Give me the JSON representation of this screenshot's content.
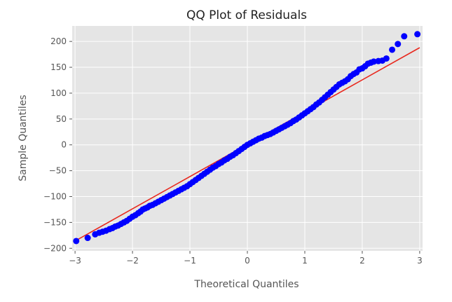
{
  "chart_data": {
    "type": "scatter",
    "title": "QQ Plot of Residuals",
    "xlabel": "Theoretical Quantiles",
    "ylabel": "Sample Quantiles",
    "xlim": [
      -3.05,
      3.05
    ],
    "ylim": [
      -205,
      230
    ],
    "xticks": [
      -3,
      -2,
      -1,
      0,
      1,
      2,
      3
    ],
    "xtick_labels": [
      "−3",
      "−2",
      "−1",
      "0",
      "1",
      "2",
      "3"
    ],
    "yticks": [
      -200,
      -150,
      -100,
      -50,
      0,
      50,
      100,
      150,
      200
    ],
    "ytick_labels": [
      "−200",
      "−150",
      "−100",
      "−50",
      "0",
      "50",
      "100",
      "150",
      "200"
    ],
    "grid": true,
    "background": "#e5e5e5",
    "grid_color": "#ffffff",
    "reference_line": {
      "x": [
        -3.0,
        3.0
      ],
      "y": [
        -186,
        188
      ],
      "color": "#e8291f"
    },
    "series": [
      {
        "color": "#0000ff",
        "points": [
          [
            -2.98,
            -186
          ],
          [
            -2.78,
            -180
          ],
          [
            -2.65,
            -173
          ],
          [
            -2.58,
            -170
          ],
          [
            -2.52,
            -168
          ],
          [
            -2.46,
            -166
          ],
          [
            -2.4,
            -163
          ],
          [
            -2.35,
            -161
          ],
          [
            -2.3,
            -158
          ],
          [
            -2.25,
            -156
          ],
          [
            -2.2,
            -153
          ],
          [
            -2.15,
            -150
          ],
          [
            -2.1,
            -147
          ],
          [
            -2.05,
            -143
          ],
          [
            -2.0,
            -139
          ],
          [
            -1.95,
            -136
          ],
          [
            -1.9,
            -132
          ],
          [
            -1.86,
            -129
          ],
          [
            -1.82,
            -125
          ],
          [
            -1.78,
            -123
          ],
          [
            -1.74,
            -121
          ],
          [
            -1.7,
            -118
          ],
          [
            -1.65,
            -116
          ],
          [
            -1.6,
            -113
          ],
          [
            -1.55,
            -110
          ],
          [
            -1.5,
            -107
          ],
          [
            -1.45,
            -104
          ],
          [
            -1.4,
            -101
          ],
          [
            -1.35,
            -98
          ],
          [
            -1.3,
            -95
          ],
          [
            -1.25,
            -92
          ],
          [
            -1.2,
            -89
          ],
          [
            -1.15,
            -86
          ],
          [
            -1.1,
            -83
          ],
          [
            -1.05,
            -80
          ],
          [
            -1.0,
            -76
          ],
          [
            -0.95,
            -72
          ],
          [
            -0.9,
            -68
          ],
          [
            -0.85,
            -64
          ],
          [
            -0.8,
            -60
          ],
          [
            -0.75,
            -56
          ],
          [
            -0.7,
            -52
          ],
          [
            -0.65,
            -48
          ],
          [
            -0.6,
            -44
          ],
          [
            -0.55,
            -41
          ],
          [
            -0.5,
            -37
          ],
          [
            -0.45,
            -34
          ],
          [
            -0.4,
            -30
          ],
          [
            -0.35,
            -27
          ],
          [
            -0.3,
            -23
          ],
          [
            -0.25,
            -20
          ],
          [
            -0.2,
            -16
          ],
          [
            -0.15,
            -12
          ],
          [
            -0.1,
            -8
          ],
          [
            -0.05,
            -4
          ],
          [
            0.0,
            0
          ],
          [
            0.05,
            3
          ],
          [
            0.1,
            6
          ],
          [
            0.15,
            9
          ],
          [
            0.2,
            12
          ],
          [
            0.25,
            14
          ],
          [
            0.3,
            17
          ],
          [
            0.35,
            19
          ],
          [
            0.4,
            21
          ],
          [
            0.45,
            24
          ],
          [
            0.5,
            27
          ],
          [
            0.55,
            30
          ],
          [
            0.6,
            33
          ],
          [
            0.65,
            36
          ],
          [
            0.7,
            39
          ],
          [
            0.75,
            42
          ],
          [
            0.8,
            46
          ],
          [
            0.85,
            49
          ],
          [
            0.9,
            53
          ],
          [
            0.95,
            57
          ],
          [
            1.0,
            61
          ],
          [
            1.05,
            65
          ],
          [
            1.1,
            69
          ],
          [
            1.15,
            73
          ],
          [
            1.2,
            78
          ],
          [
            1.25,
            82
          ],
          [
            1.3,
            87
          ],
          [
            1.35,
            92
          ],
          [
            1.4,
            97
          ],
          [
            1.45,
            102
          ],
          [
            1.5,
            107
          ],
          [
            1.55,
            112
          ],
          [
            1.6,
            117
          ],
          [
            1.65,
            120
          ],
          [
            1.7,
            123
          ],
          [
            1.75,
            127
          ],
          [
            1.8,
            133
          ],
          [
            1.85,
            137
          ],
          [
            1.9,
            140
          ],
          [
            1.95,
            146
          ],
          [
            2.0,
            148
          ],
          [
            2.05,
            152
          ],
          [
            2.1,
            157
          ],
          [
            2.15,
            159
          ],
          [
            2.2,
            161
          ],
          [
            2.28,
            162
          ],
          [
            2.35,
            163
          ],
          [
            2.42,
            167
          ],
          [
            2.52,
            184
          ],
          [
            2.62,
            195
          ],
          [
            2.73,
            210
          ],
          [
            2.96,
            214
          ]
        ]
      }
    ]
  }
}
